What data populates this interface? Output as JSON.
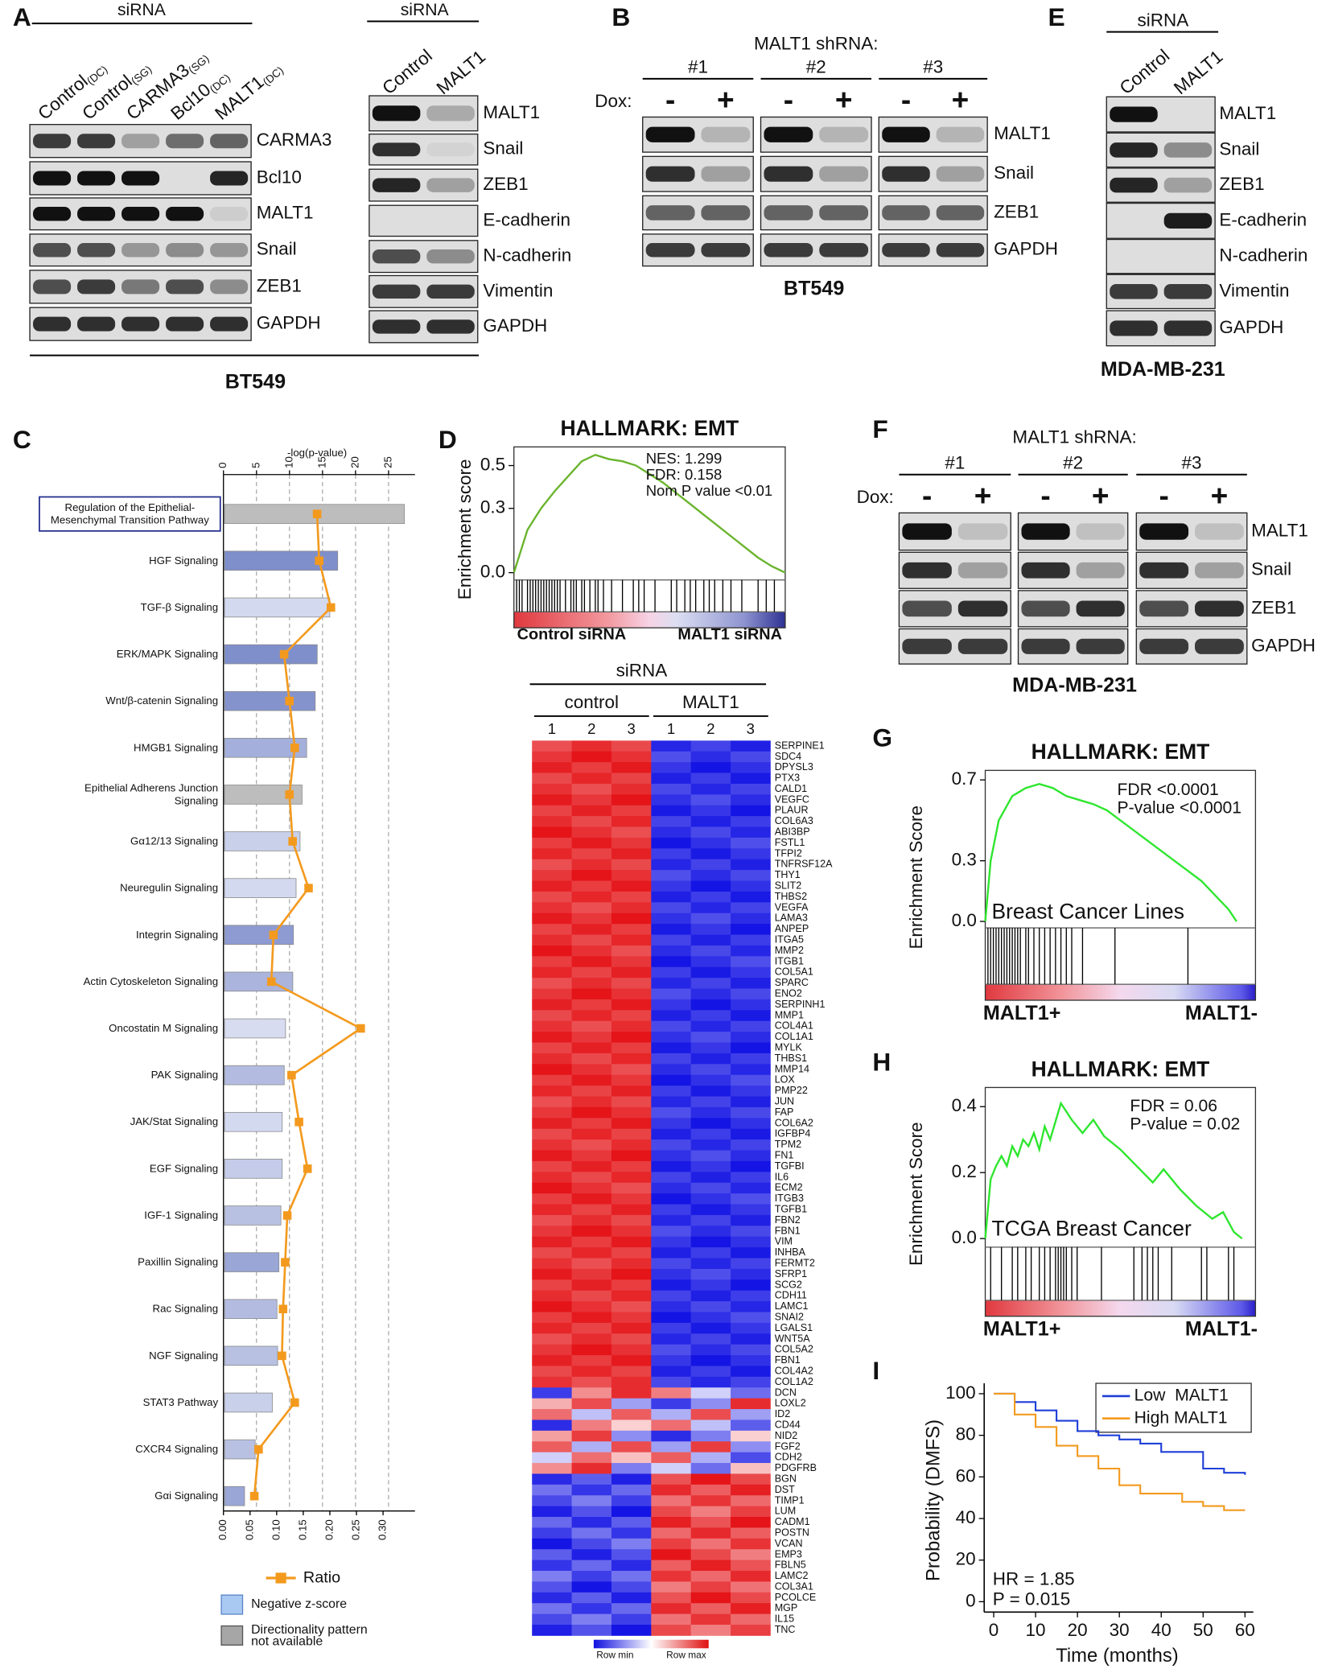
{
  "panels": {
    "A": {
      "letter": "A",
      "blot1": {
        "header": "siRNA",
        "lanes": [
          {
            "name": "Control",
            "sub": "(DC)"
          },
          {
            "name": "Control",
            "sub": "(SG)"
          },
          {
            "name": "CARMA3",
            "sub": "(SG)"
          },
          {
            "name": "Bcl10",
            "sub": "(DC)"
          },
          {
            "name": "MALT1",
            "sub": "(DC)"
          }
        ],
        "proteins": [
          "CARMA3",
          "Bcl10",
          "MALT1",
          "Snail",
          "ZEB1",
          "GAPDH"
        ]
      },
      "blot2": {
        "header": "siRNA",
        "lanes": [
          {
            "name": "Control"
          },
          {
            "name": "MALT1"
          }
        ],
        "proteins": [
          "MALT1",
          "Snail",
          "ZEB1",
          "E-cadherin",
          "N-cadherin",
          "Vimentin",
          "GAPDH"
        ]
      },
      "cell_line": "BT549"
    },
    "B": {
      "letter": "B",
      "header": "MALT1 shRNA:",
      "groups": [
        "#1",
        "#2",
        "#3"
      ],
      "dox_label": "Dox:",
      "dox": [
        "-",
        "+"
      ],
      "proteins": [
        "MALT1",
        "Snail",
        "ZEB1",
        "GAPDH"
      ],
      "cell_line": "BT549"
    },
    "E": {
      "letter": "E",
      "header": "siRNA",
      "lanes": [
        {
          "name": "Control"
        },
        {
          "name": "MALT1"
        }
      ],
      "proteins": [
        "MALT1",
        "Snail",
        "ZEB1",
        "E-cadherin",
        "N-cadherin",
        "Vimentin",
        "GAPDH"
      ],
      "cell_line": "MDA-MB-231"
    },
    "F": {
      "letter": "F",
      "header": "MALT1 shRNA:",
      "groups": [
        "#1",
        "#2",
        "#3"
      ],
      "dox_label": "Dox:",
      "dox": [
        "-",
        "+"
      ],
      "proteins": [
        "MALT1",
        "Snail",
        "ZEB1",
        "GAPDH"
      ],
      "cell_line": "MDA-MB-231"
    }
  },
  "heatmap": {
    "header": "siRNA",
    "groups": [
      "control",
      "MALT1"
    ],
    "replicates": [
      "1",
      "2",
      "3"
    ],
    "legend": [
      "Row min",
      "Row max"
    ],
    "genes": [
      "SERPINE1",
      "SDC4",
      "DPYSL3",
      "PTX3",
      "CALD1",
      "VEGFC",
      "PLAUR",
      "COL6A3",
      "ABI3BP",
      "FSTL1",
      "TFPI2",
      "TNFRSF12A",
      "THY1",
      "SLIT2",
      "THBS2",
      "VEGFA",
      "LAMA3",
      "ANPEP",
      "ITGA5",
      "MMP2",
      "ITGB1",
      "COL5A1",
      "SPARC",
      "ENO2",
      "SERPINH1",
      "MMP1",
      "COL4A1",
      "COL1A1",
      "MYLK",
      "THBS1",
      "MMP14",
      "LOX",
      "PMP22",
      "JUN",
      "FAP",
      "COL6A2",
      "IGFBP4",
      "TPM2",
      "FN1",
      "TGFBI",
      "IL6",
      "ECM2",
      "ITGB3",
      "TGFB1",
      "FBN2",
      "FBN1",
      "VIM",
      "INHBA",
      "FERMT2",
      "SFRP1",
      "SCG2",
      "CDH11",
      "LAMC1",
      "SNAI2",
      "LGALS1",
      "WNT5A",
      "COL5A2",
      "FBN1",
      "COL4A2",
      "COL1A2",
      "DCN",
      "LOXL2",
      "ID2",
      "CD44",
      "NID2",
      "FGF2",
      "CDH2",
      "PDGFRB",
      "BGN",
      "DST",
      "TIMP1",
      "LUM",
      "CADM1",
      "POSTN",
      "VCAN",
      "EMP3",
      "FBLN5",
      "LAMC2",
      "COL3A1",
      "PCOLCE",
      "MGP",
      "IL15",
      "TNC"
    ]
  },
  "chart_data": [
    {
      "type": "bar",
      "panel_label": "C",
      "orientation": "horizontal",
      "xlabel": "-log(p-value)",
      "categories": [
        "Regulation of the Epithelial-Mesenchymal Transition Pathway",
        "HGF Signaling",
        "TGF-β Signaling",
        "ERK/MAPK Signaling",
        "Wnt/β-catenin Signaling",
        "HMGB1 Signaling",
        "Epithelial Adherens Junction Signaling",
        "Gα12/13 Signaling",
        "Neuregulin Signaling",
        "Integrin Signaling",
        "Actin Cytoskeleton Signaling",
        "Oncostatin M Signaling",
        "PAK Signaling",
        "JAK/Stat Signaling",
        "EGF Signaling",
        "IGF-1 Signaling",
        "Paxillin Signaling",
        "Rac Signaling",
        "NGF Signaling",
        "STAT3 Pathway",
        "CXCR4 Signaling",
        "Gαi Signaling"
      ],
      "values": [
        27.4,
        17.3,
        16.1,
        14.2,
        13.9,
        12.6,
        11.9,
        11.6,
        11.0,
        10.6,
        10.5,
        9.4,
        9.2,
        8.9,
        8.9,
        8.7,
        8.4,
        8.1,
        8.2,
        7.4,
        4.8,
        3.2
      ],
      "colors": [
        "#bdbdbd",
        "#7f8fcb",
        "#d3d9ef",
        "#7f8fcb",
        "#8593cd",
        "#a4b0db",
        "#bdbdbd",
        "#c9d0ea",
        "#d3d9ef",
        "#8e9bd2",
        "#aab4dc",
        "#d8dcf0",
        "#b3bce0",
        "#d3d9ef",
        "#c4cce9",
        "#b8c1e2",
        "#9aa6d6",
        "#b3bce0",
        "#b8c1e2",
        "#c9d0ea",
        "#b8c1e2",
        "#9aa6d6"
      ],
      "xlim": [
        0,
        29
      ],
      "xticks": [
        0,
        5,
        10,
        15,
        20,
        25
      ],
      "grid": true,
      "ratio": {
        "name": "Ratio",
        "color": "#f39a1e",
        "values": [
          0.176,
          0.18,
          0.202,
          0.114,
          0.124,
          0.134,
          0.124,
          0.13,
          0.16,
          0.094,
          0.09,
          0.258,
          0.128,
          0.142,
          0.158,
          0.12,
          0.116,
          0.112,
          0.11,
          0.134,
          0.066,
          0.058
        ],
        "xlim": [
          0,
          0.36
        ],
        "xticks": [
          {
            "value": 0,
            "label": "0.00"
          },
          0.05,
          {
            "value": 0.1,
            "label": "0.10"
          },
          0.15,
          {
            "value": 0.2,
            "label": "0.20"
          },
          0.25,
          {
            "value": 0.3,
            "label": "0.30"
          }
        ]
      },
      "legend": [
        {
          "name": "Negative z-score",
          "color": "#a9c9f2"
        },
        {
          "name": "Directionality pattern not available",
          "color": "#a6a6a6"
        }
      ]
    },
    {
      "type": "line",
      "panel_label": "D",
      "title": "HALLMARK: EMT",
      "ylabel": "Enrichment score",
      "color": "#6ab42d",
      "x": [
        0,
        0.05,
        0.1,
        0.15,
        0.2,
        0.25,
        0.3,
        0.35,
        0.4,
        0.45,
        0.5,
        0.55,
        0.6,
        0.65,
        0.7,
        0.75,
        0.8,
        0.85,
        0.9,
        0.95,
        1
      ],
      "values": [
        0,
        0.2,
        0.3,
        0.38,
        0.45,
        0.52,
        0.55,
        0.53,
        0.52,
        0.5,
        0.46,
        0.42,
        0.37,
        0.32,
        0.27,
        0.22,
        0.17,
        0.12,
        0.07,
        0.03,
        0
      ],
      "xlim": [
        0,
        1
      ],
      "ylim": [
        -0.034,
        0.587
      ],
      "yticks": [
        {
          "value": 0,
          "label": "0.0"
        },
        0.3,
        0.5
      ],
      "hits": [
        0.01,
        0.02,
        0.03,
        0.05,
        0.06,
        0.07,
        0.08,
        0.09,
        0.1,
        0.11,
        0.12,
        0.13,
        0.14,
        0.15,
        0.16,
        0.17,
        0.19,
        0.21,
        0.22,
        0.23,
        0.25,
        0.26,
        0.28,
        0.3,
        0.31,
        0.33,
        0.36,
        0.4,
        0.44,
        0.46,
        0.48,
        0.52,
        0.58,
        0.6,
        0.63,
        0.65,
        0.67,
        0.7,
        0.72,
        0.74,
        0.77,
        0.8,
        0.84,
        0.9,
        0.93,
        0.96
      ],
      "stats": [
        "NES: 1.299",
        "FDR: 0.158",
        "Nom P value <0.01"
      ],
      "end_labels": [
        {
          "text": "Control siRNA",
          "color": "#c1272d"
        },
        {
          "text": "MALT1 siRNA",
          "color": "#2e3192"
        }
      ]
    },
    {
      "type": "line",
      "panel_label": "G",
      "title": "HALLMARK: EMT",
      "ylabel": "Enrichment Score",
      "color": "#2ee62e",
      "x": [
        0,
        0.02,
        0.05,
        0.1,
        0.15,
        0.2,
        0.25,
        0.3,
        0.35,
        0.4,
        0.45,
        0.5,
        0.6,
        0.7,
        0.8,
        0.9,
        0.93
      ],
      "values": [
        0,
        0.3,
        0.5,
        0.62,
        0.66,
        0.68,
        0.66,
        0.62,
        0.6,
        0.58,
        0.55,
        0.5,
        0.4,
        0.3,
        0.2,
        0.06,
        0.0
      ],
      "xlim": [
        0,
        1
      ],
      "ylim": [
        -0.032,
        0.747
      ],
      "yticks": [
        {
          "value": 0,
          "label": "0.0"
        },
        0.3,
        0.7
      ],
      "hits": [
        0.01,
        0.02,
        0.03,
        0.04,
        0.05,
        0.06,
        0.07,
        0.08,
        0.09,
        0.1,
        0.11,
        0.12,
        0.13,
        0.15,
        0.16,
        0.18,
        0.2,
        0.22,
        0.24,
        0.26,
        0.28,
        0.3,
        0.32,
        0.36,
        0.48,
        0.75
      ],
      "stats": [
        "FDR <0.0001",
        "P-value <0.0001"
      ],
      "annotation": "Breast Cancer Lines",
      "end_labels": [
        {
          "text": "MALT1+",
          "color": "#111111"
        },
        {
          "text": "MALT1-",
          "color": "#111111"
        }
      ]
    },
    {
      "type": "line",
      "panel_label": "H",
      "title": "HALLMARK: EMT",
      "ylabel": "Enrichment Score",
      "color": "#2ee62e",
      "x": [
        0,
        0.02,
        0.04,
        0.06,
        0.08,
        0.1,
        0.12,
        0.14,
        0.16,
        0.18,
        0.2,
        0.22,
        0.24,
        0.28,
        0.32,
        0.36,
        0.4,
        0.44,
        0.5,
        0.56,
        0.62,
        0.66,
        0.72,
        0.78,
        0.84,
        0.88,
        0.92,
        0.95
      ],
      "values": [
        0,
        0.18,
        0.22,
        0.25,
        0.22,
        0.28,
        0.25,
        0.3,
        0.28,
        0.32,
        0.27,
        0.34,
        0.3,
        0.41,
        0.36,
        0.32,
        0.36,
        0.31,
        0.27,
        0.22,
        0.17,
        0.21,
        0.15,
        0.1,
        0.06,
        0.08,
        0.02,
        0
      ],
      "xlim": [
        0,
        1
      ],
      "ylim": [
        -0.026,
        0.458
      ],
      "yticks": [
        {
          "value": 0,
          "label": "0.0"
        },
        0.2,
        0.4
      ],
      "hits": [
        0.02,
        0.06,
        0.1,
        0.12,
        0.15,
        0.17,
        0.2,
        0.22,
        0.24,
        0.26,
        0.27,
        0.28,
        0.29,
        0.3,
        0.32,
        0.34,
        0.43,
        0.55,
        0.58,
        0.6,
        0.62,
        0.64,
        0.69,
        0.8,
        0.82,
        0.9,
        0.92
      ],
      "stats": [
        "FDR = 0.06",
        "P-value = 0.02"
      ],
      "annotation": "TCGA Breast Cancer",
      "end_labels": [
        {
          "text": "MALT1+",
          "color": "#111111"
        },
        {
          "text": "MALT1-",
          "color": "#111111"
        }
      ]
    },
    {
      "type": "step",
      "panel_label": "I",
      "xlabel": "Time (months)",
      "ylabel": "Probability (DMFS)",
      "x": [
        0,
        5,
        10,
        15,
        20,
        25,
        30,
        35,
        40,
        45,
        50,
        55,
        60
      ],
      "series": [
        {
          "name": "Low  MALT1",
          "color": "#1f3fd8",
          "values": [
            100,
            96,
            92,
            87,
            82,
            80,
            78,
            76,
            72,
            72,
            64,
            62,
            61
          ]
        },
        {
          "name": "High MALT1",
          "color": "#f39a1e",
          "values": [
            100,
            90,
            84,
            75,
            70,
            64,
            56,
            52,
            52,
            48,
            46,
            44,
            44
          ]
        }
      ],
      "xlim": [
        -1,
        62
      ],
      "ylim": [
        -5,
        105
      ],
      "xticks": [
        0,
        10,
        20,
        30,
        40,
        50,
        60
      ],
      "yticks": [
        0,
        20,
        40,
        60,
        80,
        100
      ],
      "annotations": [
        "HR = 1.85",
        "P = 0.015"
      ]
    }
  ]
}
